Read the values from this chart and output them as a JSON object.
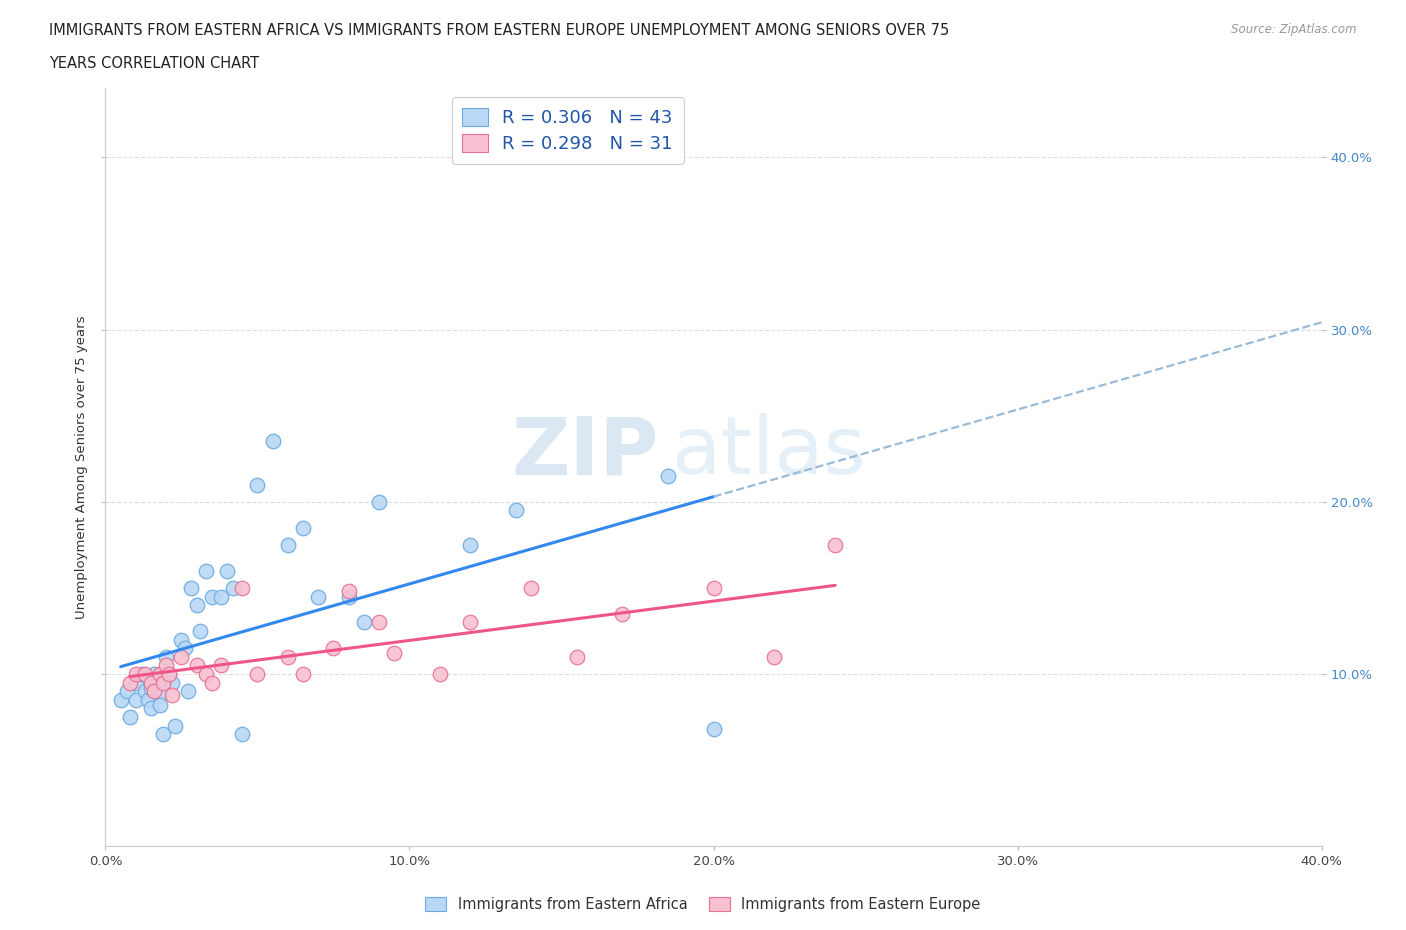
{
  "title_line1": "IMMIGRANTS FROM EASTERN AFRICA VS IMMIGRANTS FROM EASTERN EUROPE UNEMPLOYMENT AMONG SENIORS OVER 75",
  "title_line2": "YEARS CORRELATION CHART",
  "source_text": "Source: ZipAtlas.com",
  "ylabel": "Unemployment Among Seniors over 75 years",
  "xlim": [
    0.0,
    0.4
  ],
  "ylim": [
    0.0,
    0.44
  ],
  "xticks": [
    0.0,
    0.1,
    0.2,
    0.3,
    0.4
  ],
  "xtick_labels": [
    "0.0%",
    "10.0%",
    "20.0%",
    "30.0%",
    "40.0%"
  ],
  "yticks_right": [
    0.1,
    0.2,
    0.3,
    0.4
  ],
  "ytick_labels_right": [
    "10.0%",
    "20.0%",
    "30.0%",
    "40.0%"
  ],
  "africa_color": "#b8d8f5",
  "africa_edge_color": "#6aaae0",
  "europe_color": "#f8c0d0",
  "europe_edge_color": "#e87090",
  "trend_africa_color": "#3388ee",
  "trend_europe_color": "#ee5588",
  "legend_africa_label": "R = 0.306   N = 43",
  "legend_europe_label": "R = 0.298   N = 31",
  "watermark_zip": "ZIP",
  "watermark_atlas": "atlas",
  "africa_x": [
    0.005,
    0.007,
    0.008,
    0.01,
    0.01,
    0.012,
    0.013,
    0.014,
    0.015,
    0.015,
    0.016,
    0.017,
    0.018,
    0.018,
    0.019,
    0.02,
    0.021,
    0.022,
    0.023,
    0.025,
    0.026,
    0.027,
    0.028,
    0.03,
    0.031,
    0.033,
    0.035,
    0.038,
    0.04,
    0.042,
    0.045,
    0.05,
    0.055,
    0.06,
    0.065,
    0.07,
    0.08,
    0.085,
    0.09,
    0.12,
    0.135,
    0.185,
    0.2
  ],
  "africa_y": [
    0.085,
    0.09,
    0.075,
    0.095,
    0.085,
    0.1,
    0.09,
    0.085,
    0.092,
    0.08,
    0.1,
    0.095,
    0.088,
    0.082,
    0.065,
    0.11,
    0.1,
    0.095,
    0.07,
    0.12,
    0.115,
    0.09,
    0.15,
    0.14,
    0.125,
    0.16,
    0.145,
    0.145,
    0.16,
    0.15,
    0.065,
    0.21,
    0.235,
    0.175,
    0.185,
    0.145,
    0.145,
    0.13,
    0.2,
    0.175,
    0.195,
    0.215,
    0.068
  ],
  "europe_x": [
    0.008,
    0.01,
    0.013,
    0.015,
    0.016,
    0.018,
    0.019,
    0.02,
    0.021,
    0.022,
    0.025,
    0.03,
    0.033,
    0.035,
    0.038,
    0.045,
    0.05,
    0.06,
    0.065,
    0.075,
    0.08,
    0.09,
    0.095,
    0.11,
    0.12,
    0.14,
    0.155,
    0.17,
    0.2,
    0.22,
    0.24
  ],
  "europe_y": [
    0.095,
    0.1,
    0.1,
    0.095,
    0.09,
    0.1,
    0.095,
    0.105,
    0.1,
    0.088,
    0.11,
    0.105,
    0.1,
    0.095,
    0.105,
    0.15,
    0.1,
    0.11,
    0.1,
    0.115,
    0.148,
    0.13,
    0.112,
    0.1,
    0.13,
    0.15,
    0.11,
    0.135,
    0.15,
    0.11,
    0.175
  ]
}
